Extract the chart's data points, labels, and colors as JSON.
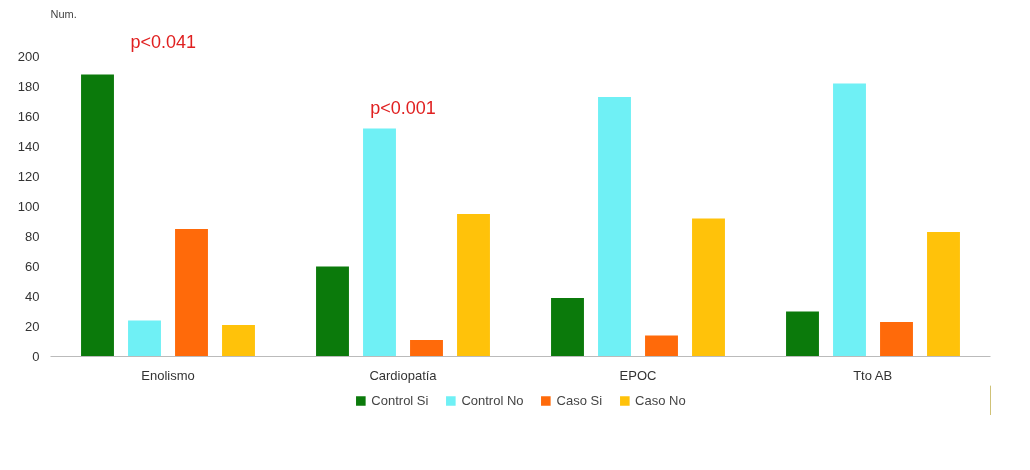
{
  "chart_data": {
    "type": "bar",
    "ylabel": "Num.",
    "categories": [
      "Enolismo",
      "Cardiopatía",
      "EPOC",
      "Tto AB"
    ],
    "series": [
      {
        "name": "Control Si",
        "color": "#0b7a0b",
        "values": [
          188,
          60,
          39,
          30
        ]
      },
      {
        "name": "Control No",
        "color": "#6ff0f5",
        "values": [
          24,
          152,
          173,
          182
        ]
      },
      {
        "name": "Caso Si",
        "color": "#ff6a0a",
        "values": [
          85,
          11,
          14,
          23
        ]
      },
      {
        "name": "Caso No",
        "color": "#ffc20a",
        "values": [
          21,
          95,
          92,
          83
        ]
      }
    ],
    "ylim": [
      0,
      200
    ],
    "yticks": [
      0,
      20,
      40,
      60,
      80,
      100,
      120,
      140,
      160,
      180,
      200
    ],
    "grid": false,
    "legend": "bottom",
    "annotations": [
      "p<0.041",
      "p<0.001"
    ]
  }
}
